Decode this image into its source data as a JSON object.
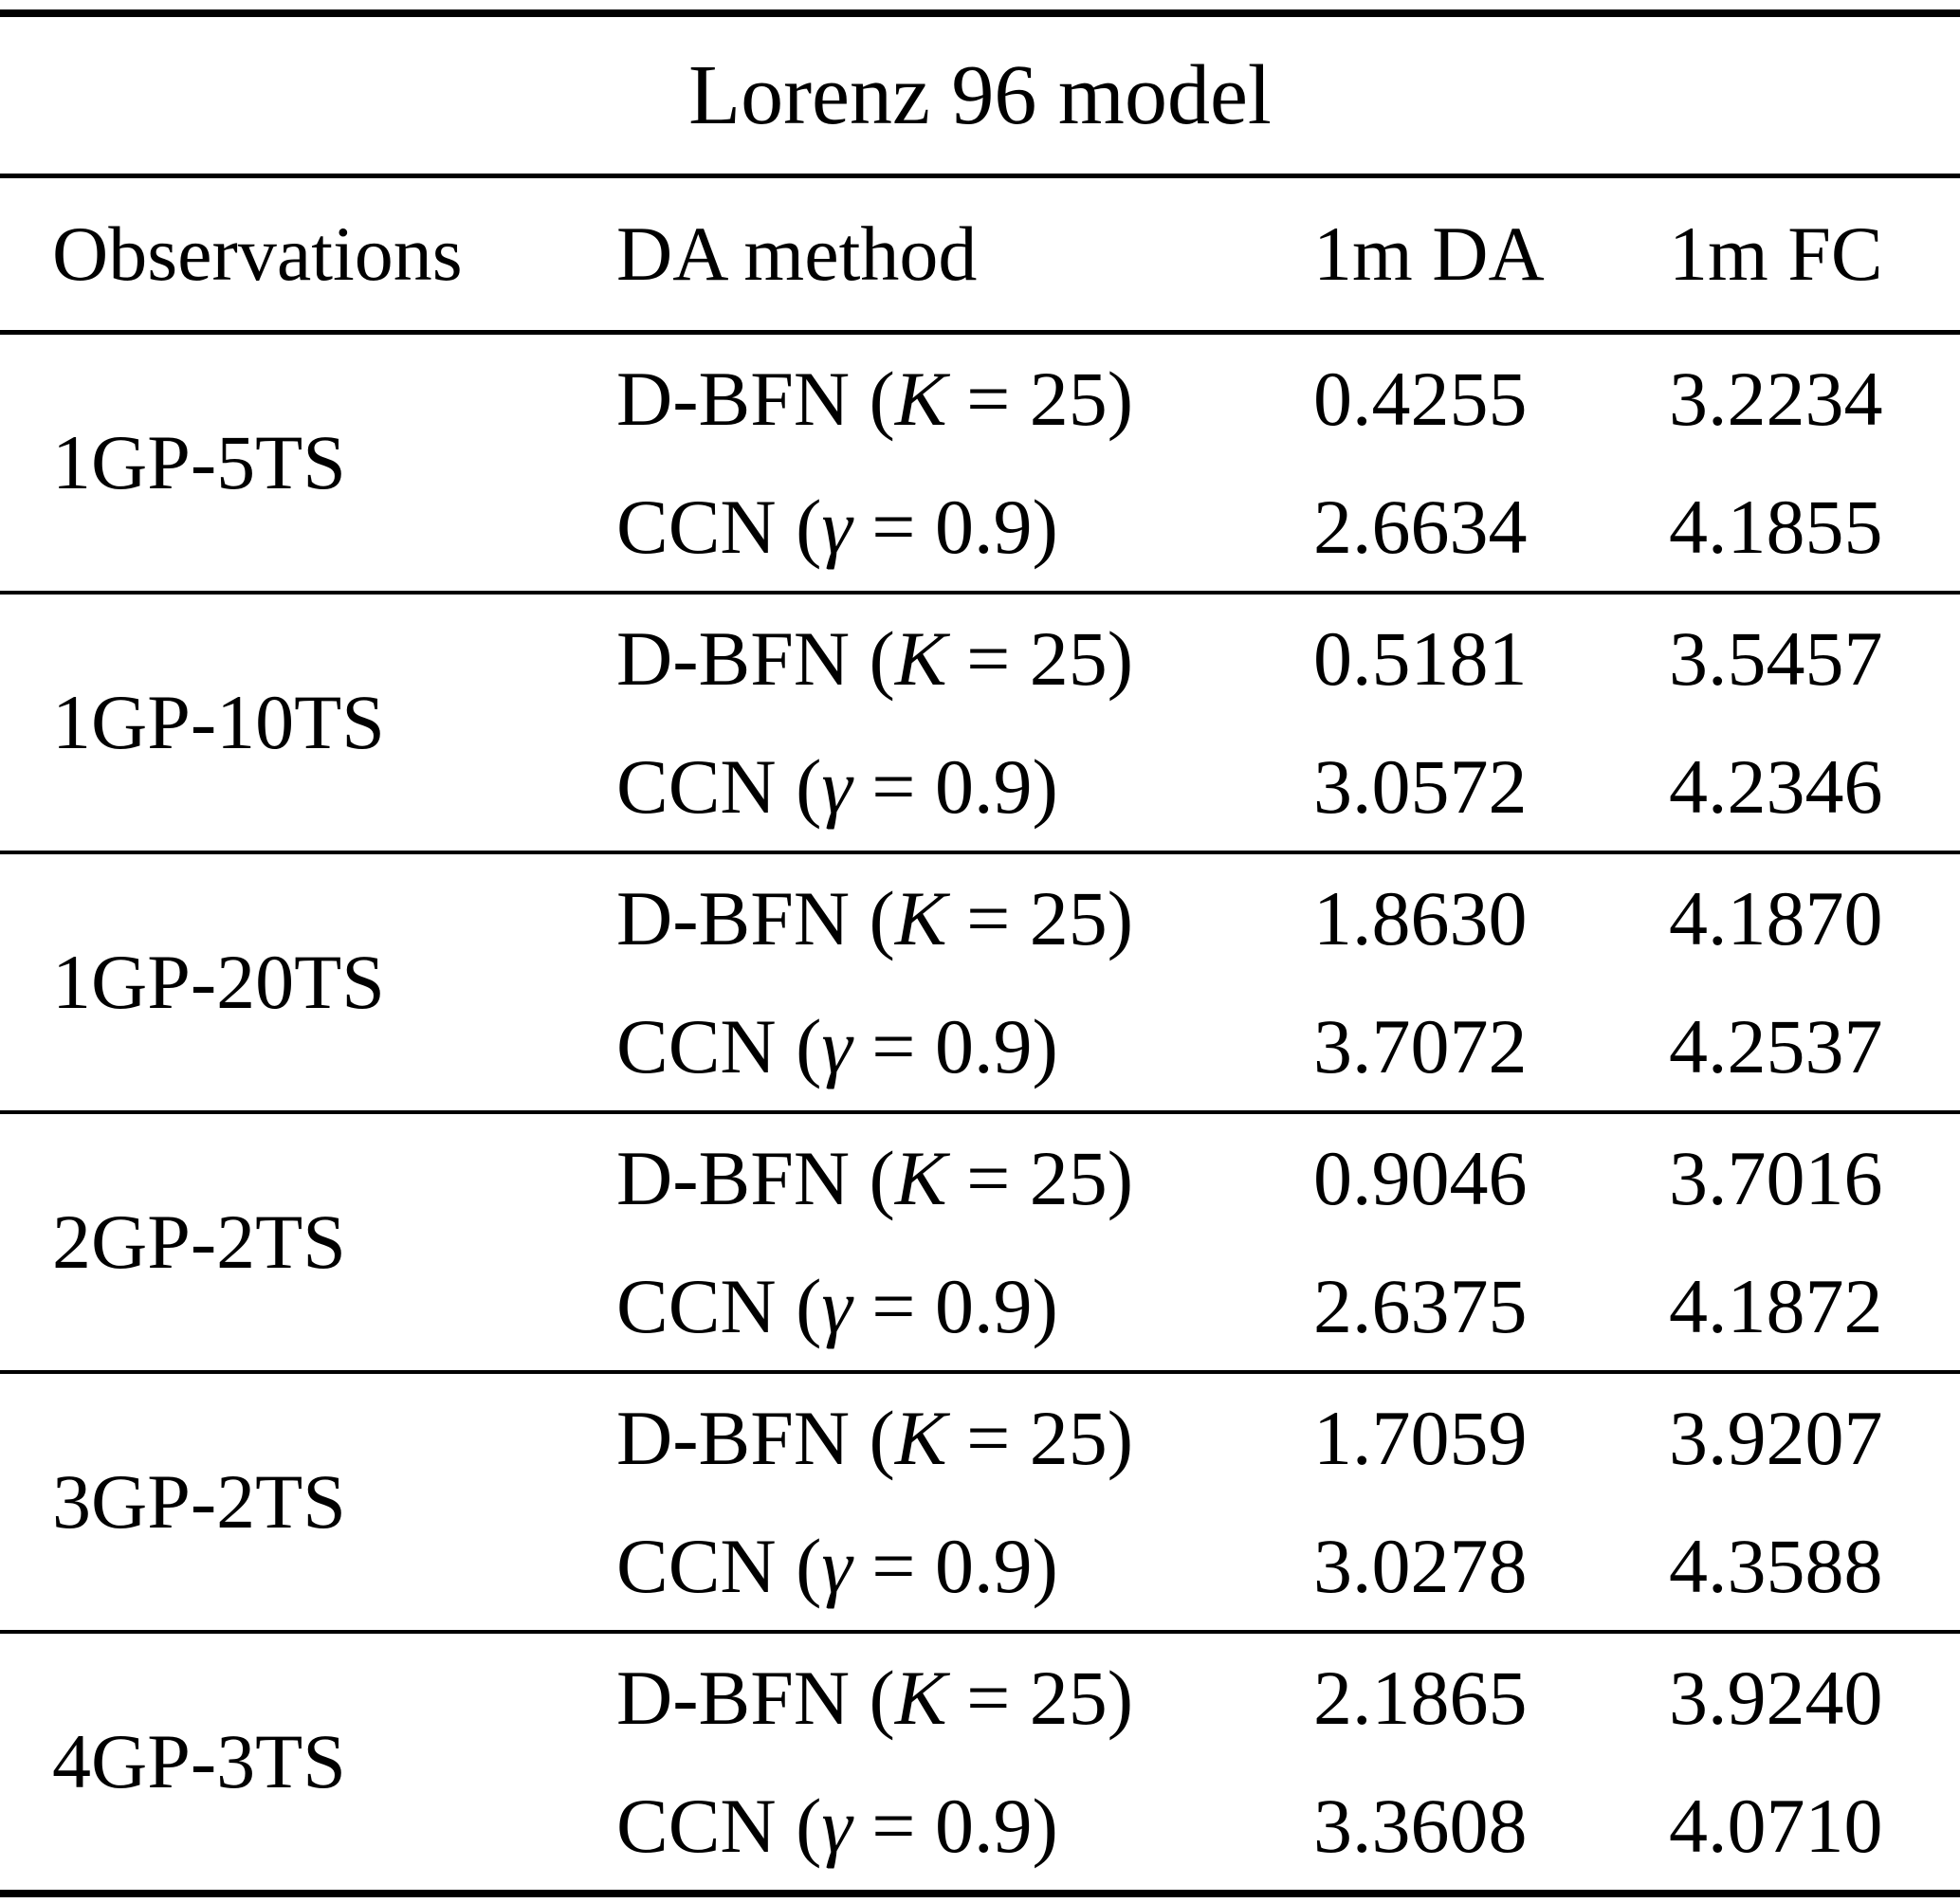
{
  "title": "Lorenz 96 model",
  "table": {
    "headers": {
      "observations": "Observations",
      "da_method": "DA method",
      "da_1m": "1m DA",
      "fc_1m": "1m FC"
    },
    "groups": [
      {
        "observation": "1GP-5TS",
        "rows": [
          {
            "method_pre": "D-BFN (",
            "method_var": "K",
            "method_post": " = 25)",
            "da": "0.4255",
            "fc": "3.2234"
          },
          {
            "method_pre": "CCN (",
            "method_var": "γ",
            "method_post": " = 0.9)",
            "da": "2.6634",
            "fc": "4.1855"
          }
        ]
      },
      {
        "observation": "1GP-10TS",
        "rows": [
          {
            "method_pre": "D-BFN (",
            "method_var": "K",
            "method_post": " = 25)",
            "da": "0.5181",
            "fc": "3.5457"
          },
          {
            "method_pre": "CCN (",
            "method_var": "γ",
            "method_post": " = 0.9)",
            "da": "3.0572",
            "fc": "4.2346"
          }
        ]
      },
      {
        "observation": "1GP-20TS",
        "rows": [
          {
            "method_pre": "D-BFN (",
            "method_var": "K",
            "method_post": " = 25)",
            "da": "1.8630",
            "fc": "4.1870"
          },
          {
            "method_pre": "CCN (",
            "method_var": "γ",
            "method_post": " = 0.9)",
            "da": "3.7072",
            "fc": "4.2537"
          }
        ]
      },
      {
        "observation": "2GP-2TS",
        "rows": [
          {
            "method_pre": "D-BFN (",
            "method_var": "K",
            "method_post": " = 25)",
            "da": "0.9046",
            "fc": "3.7016"
          },
          {
            "method_pre": "CCN (",
            "method_var": "γ",
            "method_post": " = 0.9)",
            "da": "2.6375",
            "fc": "4.1872"
          }
        ]
      },
      {
        "observation": "3GP-2TS",
        "rows": [
          {
            "method_pre": "D-BFN (",
            "method_var": "K",
            "method_post": " = 25)",
            "da": "1.7059",
            "fc": "3.9207"
          },
          {
            "method_pre": "CCN (",
            "method_var": "γ",
            "method_post": " = 0.9)",
            "da": "3.0278",
            "fc": "4.3588"
          }
        ]
      },
      {
        "observation": "4GP-3TS",
        "rows": [
          {
            "method_pre": "D-BFN (",
            "method_var": "K",
            "method_post": " = 25)",
            "da": "2.1865",
            "fc": "3.9240"
          },
          {
            "method_pre": "CCN (",
            "method_var": "γ",
            "method_post": " = 0.9)",
            "da": "3.3608",
            "fc": "4.0710"
          }
        ]
      }
    ]
  },
  "colors": {
    "text": "#000000",
    "background": "#ffffff",
    "rule": "#000000"
  }
}
